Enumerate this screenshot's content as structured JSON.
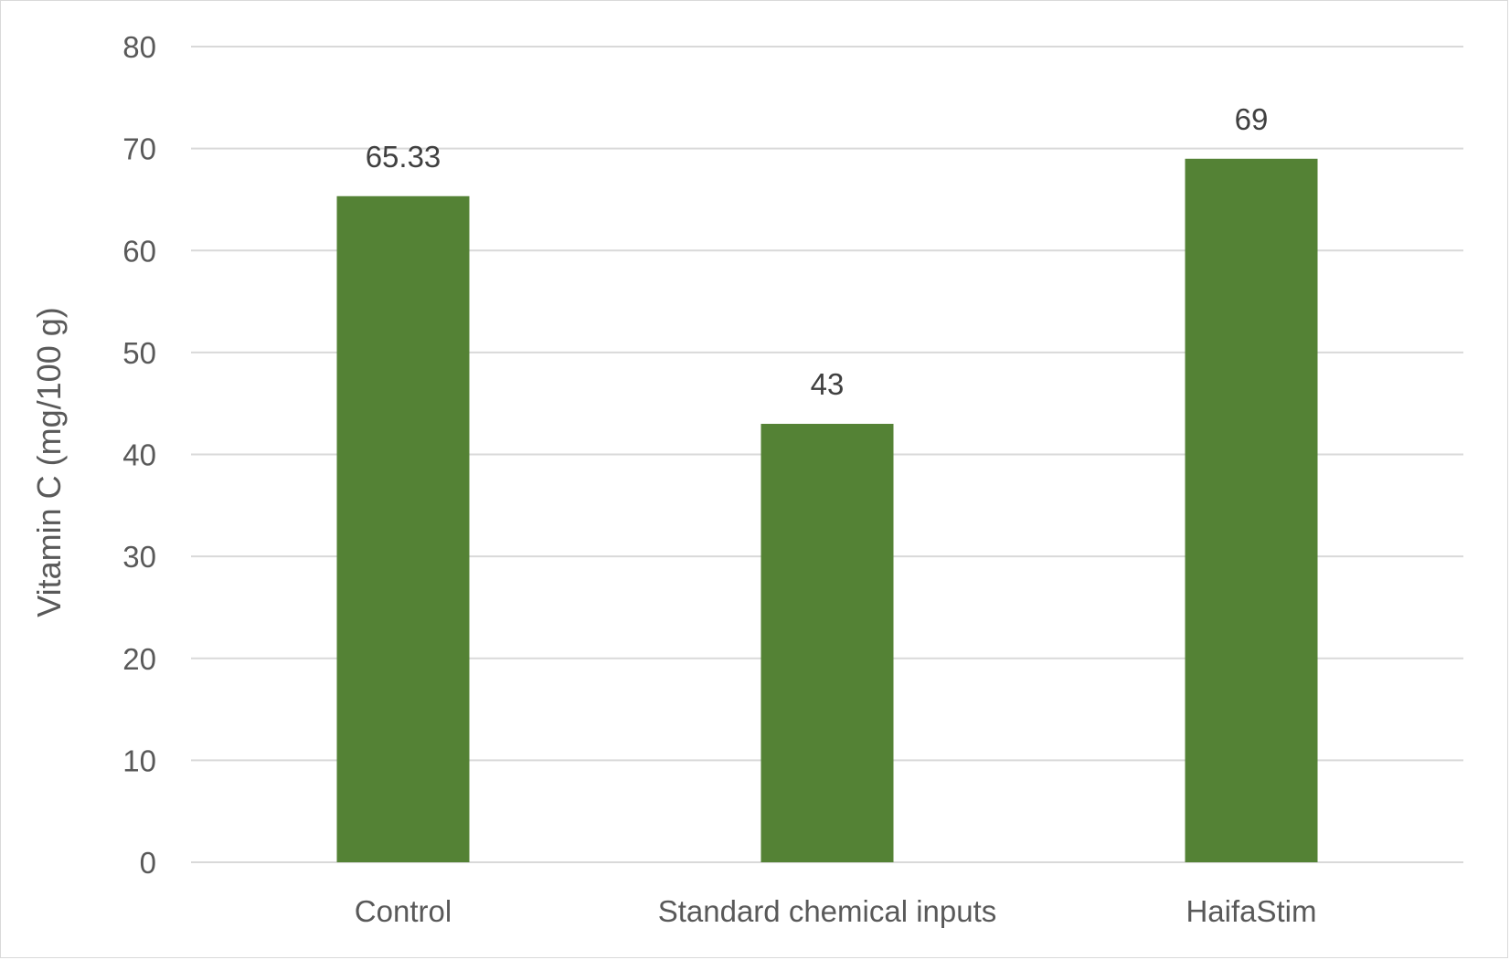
{
  "chart_data": {
    "type": "bar",
    "categories": [
      "Control",
      "Standard chemical inputs",
      "HaifaStim"
    ],
    "values": [
      65.33,
      43,
      69
    ],
    "data_labels": [
      "65.33",
      "43",
      "69"
    ],
    "title": "",
    "xlabel": "",
    "ylabel": "Vitamin C (mg/100 g)",
    "ylim": [
      0,
      80
    ],
    "yticks": [
      0,
      10,
      20,
      30,
      40,
      50,
      60,
      70,
      80
    ],
    "grid": true,
    "legend": "none",
    "bar_color": "#548235"
  }
}
